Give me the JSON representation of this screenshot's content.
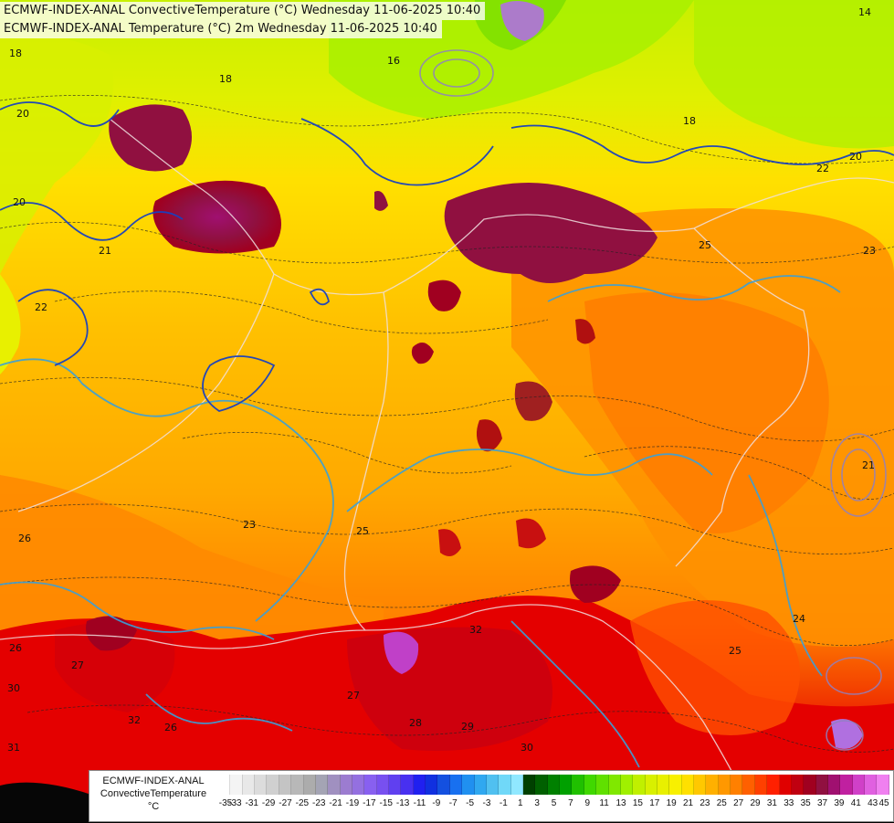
{
  "titles": {
    "line1": "ECMWF-INDEX-ANAL ConvectiveTemperature (°C) Wednesday 11-06-2025 10:40",
    "line2": "ECMWF-INDEX-ANAL Temperature (°C) 2m Wednesday 11-06-2025 10:40"
  },
  "legend": {
    "model": "ECMWF-INDEX-ANAL",
    "parameter": "ConvectiveTemperature",
    "unit": "°C",
    "labels": [
      "-35",
      "-33",
      "-31",
      "-29",
      "-27",
      "-25",
      "-23",
      "-21",
      "-19",
      "-17",
      "-15",
      "-13",
      "-11",
      "-9",
      "-7",
      "-5",
      "-3",
      "-1",
      "1",
      "3",
      "5",
      "7",
      "9",
      "11",
      "13",
      "15",
      "17",
      "19",
      "21",
      "23",
      "25",
      "27",
      "29",
      "31",
      "33",
      "35",
      "37",
      "39",
      "41",
      "43",
      "45"
    ],
    "colors": [
      "#ffffff",
      "#f4f4f4",
      "#e8e8e8",
      "#dcdcdc",
      "#d0d0d0",
      "#c4c4c4",
      "#b8b8b8",
      "#acacac",
      "#a4a4b4",
      "#a090c0",
      "#9c7cd0",
      "#9470e0",
      "#8860f0",
      "#7850f0",
      "#6040f0",
      "#4830f0",
      "#2020f0",
      "#1030e0",
      "#1450e0",
      "#1870f0",
      "#2090f0",
      "#30a8f0",
      "#50c0f0",
      "#70d8f8",
      "#90e8ff",
      "#004000",
      "#006000",
      "#008000",
      "#00a000",
      "#20c000",
      "#40d800",
      "#60e000",
      "#80e800",
      "#a0f000",
      "#c0f000",
      "#d8f000",
      "#e8f000",
      "#f8f000",
      "#ffe000",
      "#ffc800",
      "#ffb000",
      "#ff9800",
      "#ff8000",
      "#ff6000",
      "#ff4000",
      "#ff2000",
      "#e00000",
      "#c00010",
      "#a00020",
      "#901040",
      "#a01070",
      "#c020a0",
      "#d040c8",
      "#e060e0",
      "#f080f0"
    ]
  },
  "contour_labels": [
    {
      "text": "18"
    },
    {
      "text": "18"
    },
    {
      "text": "20"
    },
    {
      "text": "20"
    },
    {
      "text": "21"
    },
    {
      "text": "22"
    },
    {
      "text": "23"
    },
    {
      "text": "23"
    },
    {
      "text": "25"
    },
    {
      "text": "25"
    },
    {
      "text": "25"
    },
    {
      "text": "26"
    },
    {
      "text": "26"
    },
    {
      "text": "26"
    },
    {
      "text": "27"
    },
    {
      "text": "27"
    },
    {
      "text": "28"
    },
    {
      "text": "29"
    },
    {
      "text": "30"
    },
    {
      "text": "30"
    },
    {
      "text": "31"
    },
    {
      "text": "32"
    },
    {
      "text": "32"
    },
    {
      "text": "24"
    },
    {
      "text": "14"
    },
    {
      "text": "16"
    },
    {
      "text": "18"
    },
    {
      "text": "20"
    },
    {
      "text": "21"
    },
    {
      "text": "22"
    }
  ]
}
